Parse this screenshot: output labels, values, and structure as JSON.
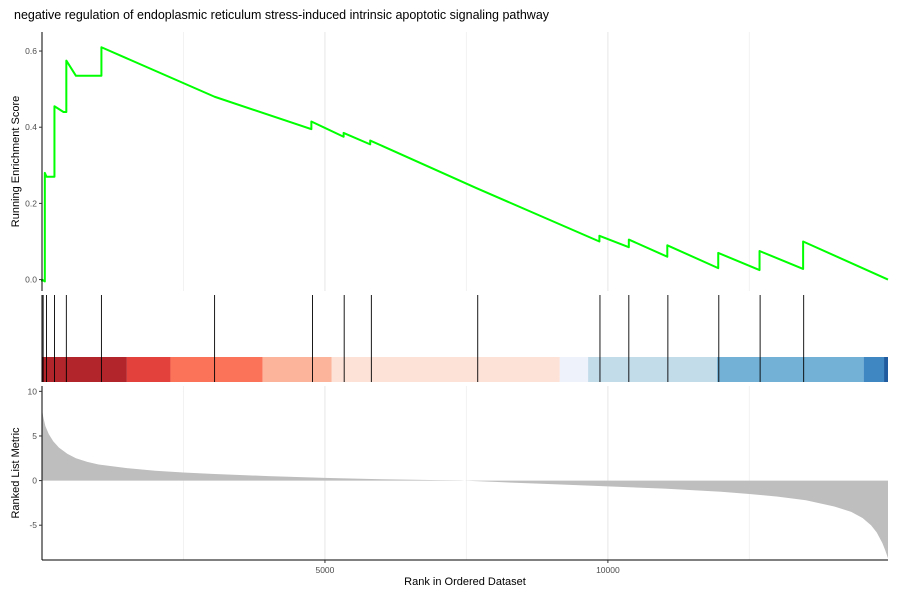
{
  "chart_data": {
    "type": "line",
    "title": "negative regulation of endoplasmic reticulum stress-induced intrinsic apoptotic signaling pathway",
    "xlabel": "Rank in Ordered Dataset",
    "xlim": [
      0,
      14950
    ],
    "x_ticks": [
      5000,
      10000
    ],
    "x_tick_labels": [
      "5000",
      "10000"
    ],
    "line_color": "#00ff00",
    "grid": "vertical",
    "es_panel": {
      "ylabel": "Running Enrichment Score",
      "ylim": [
        -0.03,
        0.65
      ],
      "y_ticks": [
        0.0,
        0.2,
        0.4,
        0.6
      ],
      "y_tick_labels": [
        "0.0",
        "0.2",
        "0.4",
        "0.6"
      ],
      "series": [
        {
          "x": [
            0,
            50,
            80,
            220,
            380,
            430,
            600,
            1050,
            3050,
            4760,
            5330,
            5800,
            7680,
            9850,
            10370,
            11050,
            11950,
            12680,
            13450,
            14950
          ],
          "peak_y": [
            0.0,
            0.28,
            0.27,
            0.455,
            0.44,
            0.575,
            0.535,
            0.61,
            0.48,
            0.415,
            0.385,
            0.365,
            0.24,
            0.115,
            0.105,
            0.09,
            0.07,
            0.075,
            0.1,
            0.0
          ],
          "start_y": [
            -0.005,
            -0.005,
            0.27,
            0.27,
            0.44,
            0.44,
            0.535,
            0.535,
            0.48,
            0.395,
            0.375,
            0.355,
            0.24,
            0.1,
            0.085,
            0.06,
            0.03,
            0.025,
            0.028,
            0.0
          ]
        }
      ]
    },
    "hits": [
      20,
      80,
      220,
      430,
      1050,
      3050,
      4780,
      5340,
      5820,
      7700,
      9860,
      10370,
      11060,
      11960,
      12690,
      13460
    ],
    "color_bar": [
      {
        "from": 0,
        "to": 1500,
        "color": "#b2262b"
      },
      {
        "from": 1500,
        "to": 2270,
        "color": "#e3413b"
      },
      {
        "from": 2270,
        "to": 3900,
        "color": "#fb7359"
      },
      {
        "from": 3900,
        "to": 5120,
        "color": "#fcb49b"
      },
      {
        "from": 5120,
        "to": 9150,
        "color": "#fde2d7"
      },
      {
        "from": 9150,
        "to": 9650,
        "color": "#eef2fa"
      },
      {
        "from": 9650,
        "to": 11930,
        "color": "#c3dcea"
      },
      {
        "from": 11930,
        "to": 14520,
        "color": "#74b1d7"
      },
      {
        "from": 14520,
        "to": 14880,
        "color": "#3e87c3"
      },
      {
        "from": 14880,
        "to": 14950,
        "color": "#1f5b9e"
      }
    ],
    "ranked_panel": {
      "ylabel": "Ranked List Metric",
      "ylim": [
        -8.9,
        10.6
      ],
      "y_ticks": [
        -5,
        0,
        5,
        10
      ],
      "y_tick_labels": [
        "-5",
        "0",
        "5",
        "10"
      ],
      "fill_color": "#bebebe",
      "profile": {
        "x": [
          0,
          20,
          60,
          120,
          200,
          300,
          450,
          600,
          800,
          1000,
          1500,
          2000,
          2500,
          3000,
          4000,
          5000,
          6000,
          7000,
          7400,
          7500,
          8000,
          9000,
          10000,
          11000,
          12000,
          12500,
          13000,
          13500,
          14000,
          14300,
          14500,
          14650,
          14750,
          14850,
          14900,
          14950
        ],
        "y": [
          8.0,
          7.2,
          6.1,
          5.2,
          4.4,
          3.7,
          3.0,
          2.5,
          2.1,
          1.8,
          1.4,
          1.1,
          0.9,
          0.75,
          0.5,
          0.3,
          0.15,
          0.05,
          0.02,
          -0.02,
          -0.15,
          -0.4,
          -0.65,
          -0.9,
          -1.25,
          -1.5,
          -1.8,
          -2.2,
          -2.9,
          -3.5,
          -4.2,
          -5.0,
          -5.8,
          -7.0,
          -7.8,
          -8.7
        ]
      }
    }
  }
}
